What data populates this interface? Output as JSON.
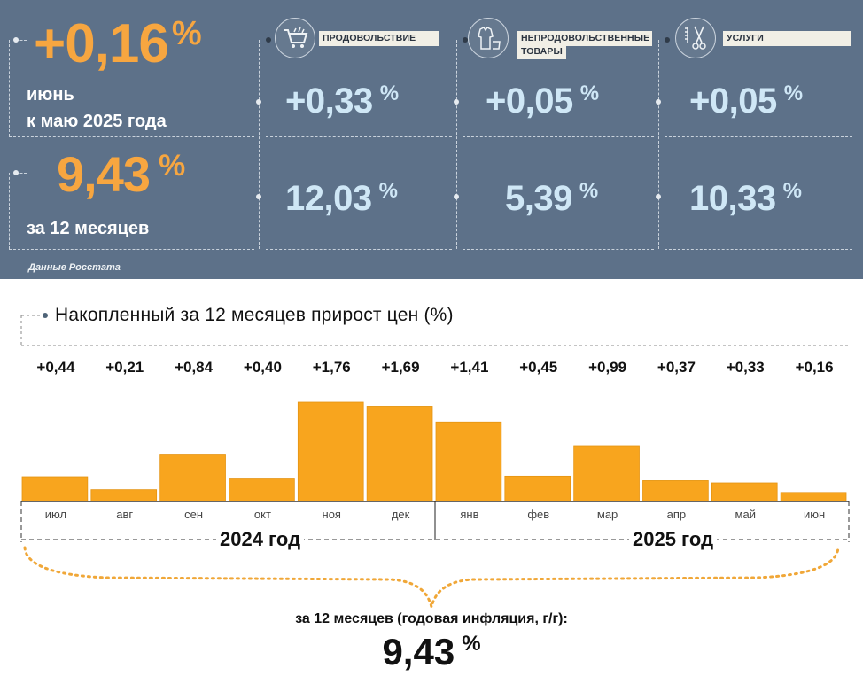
{
  "header": {
    "monthly_value": "+0,16",
    "monthly_pct": "%",
    "monthly_period_line1": "июнь",
    "monthly_period_line2": "к маю 2025 года",
    "annual_value": "9,43",
    "annual_pct": "%",
    "annual_period": "за 12 месяцев",
    "source": "Данные Росстата"
  },
  "categories": [
    {
      "label": "ПРОДОВОЛЬСТВИЕ",
      "icon": "shopping-cart-icon",
      "monthly": "+0,33",
      "annual": "12,03",
      "pct": "%"
    },
    {
      "label_line1": "НЕПРОДОВОЛЬСТВЕННЫЕ",
      "label_line2": "ТОВАРЫ",
      "icon": "clothes-icon",
      "monthly": "+0,05",
      "annual": "5,39",
      "pct": "%"
    },
    {
      "label": "УСЛУГИ",
      "icon": "scissors-comb-icon",
      "monthly": "+0,05",
      "annual": "10,33",
      "pct": "%"
    }
  ],
  "chart_data": {
    "type": "bar",
    "title": "Накопленный за 12 месяцев прирост цен (%)",
    "categories": [
      "июл",
      "авг",
      "сен",
      "окт",
      "ноя",
      "дек",
      "янв",
      "фев",
      "мар",
      "апр",
      "май",
      "июн"
    ],
    "values": [
      0.44,
      0.21,
      0.84,
      0.4,
      1.76,
      1.69,
      1.41,
      0.45,
      0.99,
      0.37,
      0.33,
      0.16
    ],
    "value_labels": [
      "+0,44",
      "+0,21",
      "+0,84",
      "+0,40",
      "+1,76",
      "+1,69",
      "+1,41",
      "+0,45",
      "+0,99",
      "+0,37",
      "+0,33",
      "+0,16"
    ],
    "year_groups": [
      "2024 год",
      "2025 год"
    ],
    "bar_color": "#f8a51e",
    "ylim": [
      0,
      1.76
    ]
  },
  "footer": {
    "caption": "за 12 месяцев (годовая инфляция, г/г):",
    "value": "9,43",
    "pct": "%"
  },
  "colors": {
    "panel_bg": "#5d7189",
    "accent_orange": "#f7a640",
    "value_blue": "#cfe7f6"
  }
}
